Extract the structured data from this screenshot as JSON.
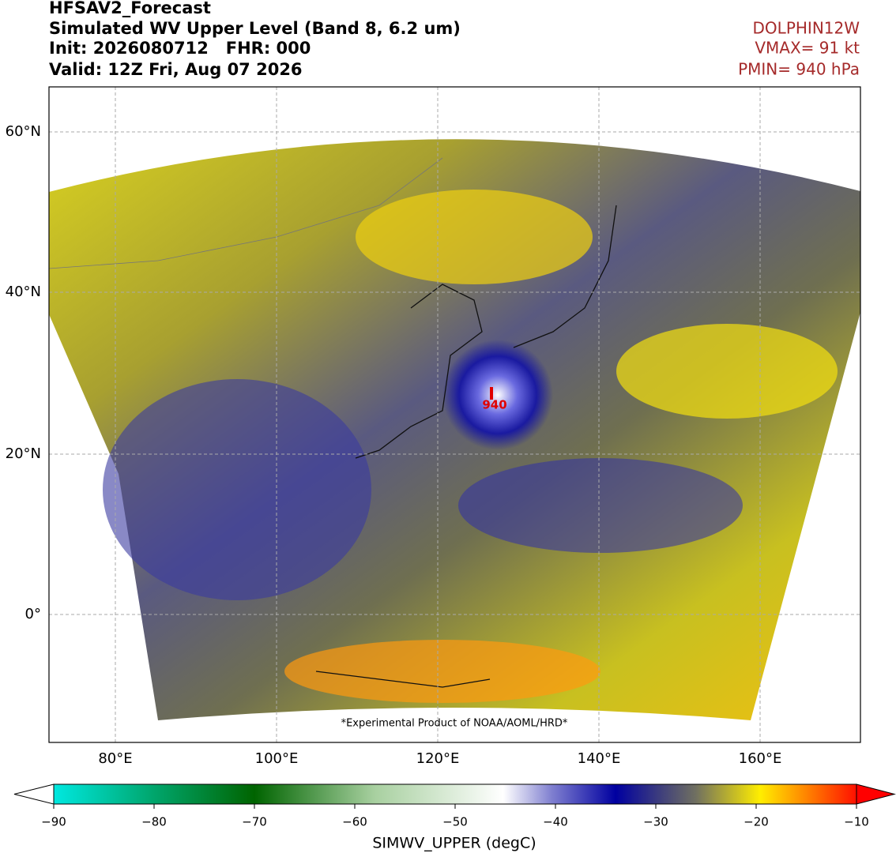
{
  "header": {
    "title": "HFSAV2_Forecast",
    "subtitle": "Simulated WV Upper Level (Band 8, 6.2 um)",
    "init": "Init: 2026080712   FHR: 000",
    "valid": "Valid: 12Z Fri, Aug 07 2026"
  },
  "storm": {
    "name": "DOLPHIN12W",
    "vmax": "VMAX= 91 kt",
    "pmin": "PMIN= 940 hPa",
    "center_label": "940"
  },
  "map": {
    "lat_labels": [
      "60°N",
      "40°N",
      "20°N",
      "0°"
    ],
    "lon_labels": [
      "80°E",
      "100°E",
      "120°E",
      "140°E",
      "160°E"
    ],
    "footnote": "*Experimental Product of NOAA/AOML/HRD*"
  },
  "colorbar": {
    "ticks": [
      "−90",
      "−80",
      "−70",
      "−60",
      "−50",
      "−40",
      "−30",
      "−20",
      "−10"
    ],
    "label": "SIMWV_UPPER (degC)"
  }
}
